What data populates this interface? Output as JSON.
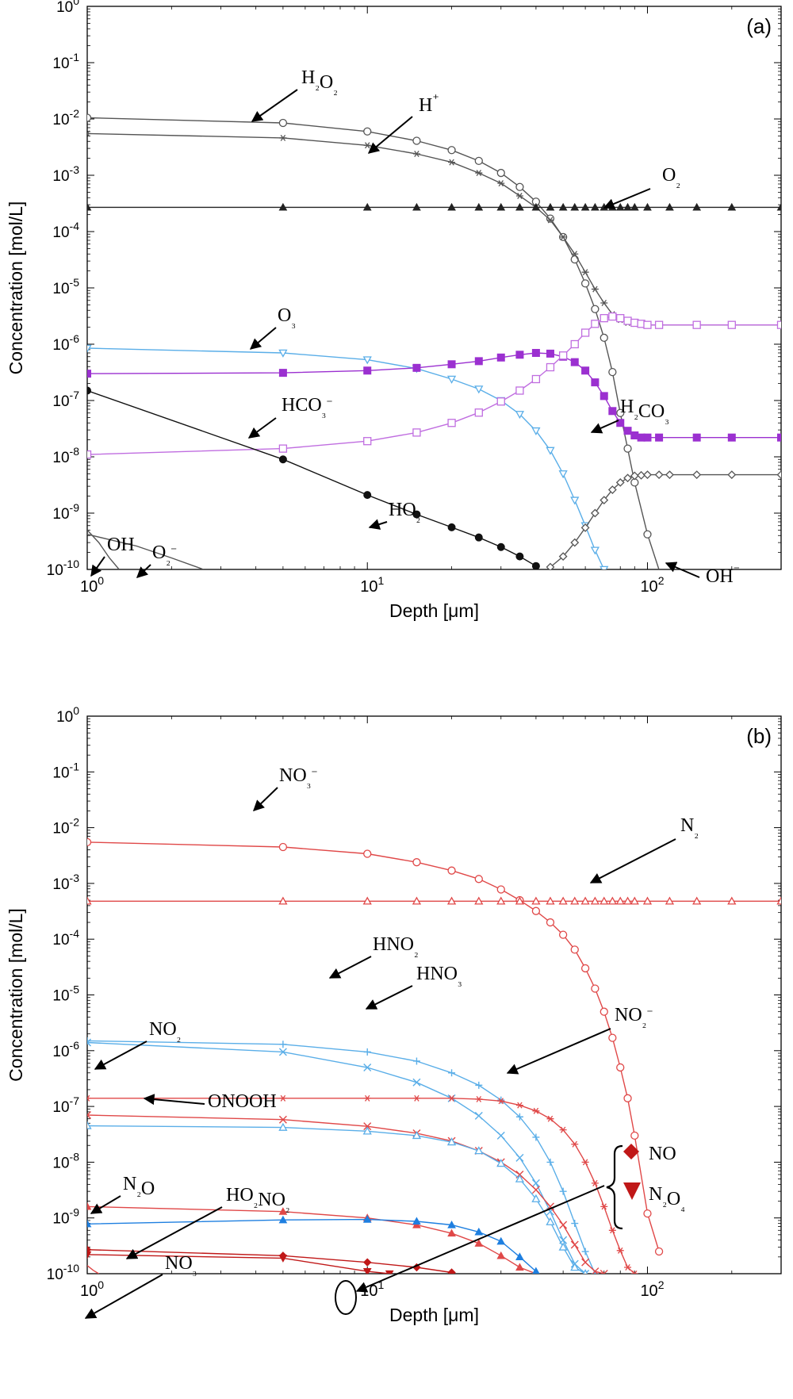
{
  "chart_data": [
    {
      "type": "line",
      "panel_label": "(a)",
      "xlabel": "Depth [μm]",
      "ylabel": "Concentration [mol/L]",
      "x_scale": "log",
      "y_scale": "log",
      "xlim": [
        1,
        300
      ],
      "ylim": [
        1e-10,
        1
      ],
      "x_tick_labels": [
        "10^0",
        "10^1",
        "10^2"
      ],
      "y_tick_labels": [
        "10^0",
        "10^-1",
        "10^-2",
        "10^-3",
        "10^-4",
        "10^-5",
        "10^-6",
        "10^-7",
        "10^-8",
        "10^-9",
        "10^-10"
      ],
      "grid": false,
      "series": [
        {
          "name": "H₂O₂",
          "color": "#555555",
          "marker": "circle-open",
          "x": [
            1,
            5,
            10,
            15,
            20,
            25,
            30,
            35,
            40,
            45,
            50,
            55,
            60,
            65,
            70,
            75,
            80,
            85,
            90,
            100,
            115
          ],
          "y": [
            0.0105,
            0.0085,
            0.006,
            0.0041,
            0.0028,
            0.0018,
            0.0011,
            0.00062,
            0.00034,
            0.00017,
            8e-05,
            3.2e-05,
            1.2e-05,
            4.2e-06,
            1.3e-06,
            3.2e-07,
            6e-08,
            1.4e-08,
            3.5e-09,
            4.2e-10,
            5e-11
          ]
        },
        {
          "name": "H⁺",
          "color": "#555555",
          "marker": "asterisk",
          "x": [
            1,
            5,
            10,
            15,
            20,
            25,
            30,
            35,
            40,
            45,
            50,
            55,
            60,
            65,
            70,
            75,
            80,
            85,
            90,
            95,
            100,
            110,
            150,
            200,
            300
          ],
          "y": [
            0.0055,
            0.0046,
            0.0034,
            0.0024,
            0.0017,
            0.0011,
            0.00072,
            0.00043,
            0.00027,
            0.00016,
            8e-05,
            4e-05,
            1.9e-05,
            9.5e-06,
            5.4e-06,
            3.4e-06,
            2.7e-06,
            2.4e-06,
            2.3e-06,
            2.2e-06,
            2.2e-06,
            2.2e-06,
            2.2e-06,
            2.2e-06,
            2.2e-06
          ]
        },
        {
          "name": "O₂",
          "color": "#222222",
          "marker": "triangle-filled",
          "x": [
            1,
            5,
            10,
            15,
            20,
            25,
            30,
            35,
            40,
            45,
            50,
            55,
            60,
            65,
            70,
            75,
            80,
            85,
            90,
            100,
            120,
            150,
            200,
            300
          ],
          "y": [
            0.00027,
            0.00027,
            0.00027,
            0.00027,
            0.00027,
            0.00027,
            0.00027,
            0.00027,
            0.00027,
            0.00027,
            0.00027,
            0.00027,
            0.00027,
            0.00027,
            0.00027,
            0.00027,
            0.00027,
            0.00027,
            0.00027,
            0.00027,
            0.00027,
            0.00027,
            0.00027,
            0.00027
          ]
        },
        {
          "name": "O₃",
          "color": "#5aaee8",
          "marker": "triangle-down-open",
          "x": [
            1,
            5,
            10,
            15,
            20,
            25,
            30,
            35,
            40,
            45,
            50,
            55,
            60,
            65,
            70
          ],
          "y": [
            8.5e-07,
            7e-07,
            5.3e-07,
            3.7e-07,
            2.4e-07,
            1.6e-07,
            1e-07,
            5.7e-08,
            2.9e-08,
            1.3e-08,
            5e-09,
            1.7e-09,
            6e-10,
            2.2e-10,
            1e-10
          ]
        },
        {
          "name": "H₂CO₃",
          "color": "#9b30d0",
          "marker": "square-filled",
          "x": [
            1,
            5,
            10,
            15,
            20,
            25,
            30,
            35,
            40,
            45,
            50,
            55,
            60,
            65,
            70,
            75,
            80,
            85,
            90,
            95,
            100,
            110,
            150,
            200,
            300
          ],
          "y": [
            3e-07,
            3.1e-07,
            3.4e-07,
            3.8e-07,
            4.4e-07,
            5e-07,
            5.8e-07,
            6.5e-07,
            7e-07,
            6.8e-07,
            6e-07,
            4.8e-07,
            3.4e-07,
            2.1e-07,
            1.2e-07,
            6.5e-08,
            4e-08,
            2.9e-08,
            2.4e-08,
            2.2e-08,
            2.2e-08,
            2.2e-08,
            2.2e-08,
            2.2e-08,
            2.2e-08
          ]
        },
        {
          "name": "HCO₃⁻",
          "color": "#c06ee0",
          "marker": "square-open",
          "x": [
            1,
            5,
            10,
            15,
            20,
            25,
            30,
            35,
            40,
            45,
            50,
            55,
            60,
            65,
            70,
            75,
            80,
            85,
            90,
            95,
            100,
            110,
            150,
            200,
            300
          ],
          "y": [
            1.1e-08,
            1.4e-08,
            1.9e-08,
            2.7e-08,
            4e-08,
            6.1e-08,
            9.6e-08,
            1.5e-07,
            2.4e-07,
            3.9e-07,
            6.3e-07,
            1e-06,
            1.6e-06,
            2.3e-06,
            2.9e-06,
            3.1e-06,
            2.9e-06,
            2.6e-06,
            2.4e-06,
            2.3e-06,
            2.2e-06,
            2.2e-06,
            2.2e-06,
            2.2e-06,
            2.2e-06
          ]
        },
        {
          "name": "HO₂",
          "color": "#111111",
          "marker": "circle-filled",
          "x": [
            1,
            5,
            10,
            15,
            20,
            25,
            30,
            35,
            40
          ],
          "y": [
            1.5e-07,
            9e-09,
            2.1e-09,
            9.5e-10,
            5.6e-10,
            3.7e-10,
            2.5e-10,
            1.7e-10,
            1.15e-10
          ]
        },
        {
          "name": "OH⁻",
          "color": "#555555",
          "marker": "diamond-open",
          "x": [
            45,
            50,
            55,
            60,
            65,
            70,
            75,
            80,
            85,
            90,
            95,
            100,
            110,
            120,
            150,
            200,
            300
          ],
          "y": [
            1.1e-10,
            1.7e-10,
            3e-10,
            5.5e-10,
            1e-09,
            1.7e-09,
            2.6e-09,
            3.5e-09,
            4.2e-09,
            4.6e-09,
            4.7e-09,
            4.8e-09,
            4.8e-09,
            4.8e-09,
            4.8e-09,
            4.8e-09,
            4.8e-09
          ]
        },
        {
          "name": "OH",
          "color": "#555555",
          "marker": "none",
          "x": [
            1,
            1.1,
            1.2,
            1.3
          ],
          "y": [
            5e-10,
            3e-10,
            1.6e-10,
            1e-10
          ]
        },
        {
          "name": "O₂⁻",
          "color": "#555555",
          "marker": "none",
          "x": [
            1,
            1.5,
            2,
            2.6
          ],
          "y": [
            4.2e-10,
            2.6e-10,
            1.6e-10,
            1e-10
          ]
        }
      ],
      "annotations": [
        "H₂O₂",
        "H⁺",
        "O₂",
        "O₃",
        "HCO₃⁻",
        "H₂CO₃",
        "HO₂",
        "OH",
        "O₂⁻",
        "OH⁻"
      ]
    },
    {
      "type": "line",
      "panel_label": "(b)",
      "xlabel": "Depth [μm]",
      "ylabel": "Concentration [mol/L]",
      "x_scale": "log",
      "y_scale": "log",
      "xlim": [
        1,
        300
      ],
      "ylim": [
        1e-10,
        1
      ],
      "x_tick_labels": [
        "10^0",
        "10^1",
        "10^2"
      ],
      "y_tick_labels": [
        "10^0",
        "10^-1",
        "10^-2",
        "10^-3",
        "10^-4",
        "10^-5",
        "10^-6",
        "10^-7",
        "10^-8",
        "10^-9",
        "10^-10"
      ],
      "grid": false,
      "series": [
        {
          "name": "NO₃⁻",
          "color": "#e04848",
          "marker": "circle-open",
          "x": [
            1,
            5,
            10,
            15,
            20,
            25,
            30,
            35,
            40,
            45,
            50,
            55,
            60,
            65,
            70,
            75,
            80,
            85,
            90,
            100,
            110
          ],
          "y": [
            0.0055,
            0.0045,
            0.0034,
            0.0024,
            0.0017,
            0.0012,
            0.00078,
            0.0005,
            0.00032,
            0.0002,
            0.00012,
            6.5e-05,
            3e-05,
            1.3e-05,
            5e-06,
            1.7e-06,
            5e-07,
            1.4e-07,
            3e-08,
            1.2e-09,
            2.5e-10
          ]
        },
        {
          "name": "N₂",
          "color": "#e04848",
          "marker": "triangle-open",
          "x": [
            1,
            5,
            10,
            15,
            20,
            25,
            30,
            35,
            40,
            45,
            50,
            55,
            60,
            65,
            70,
            75,
            80,
            85,
            90,
            100,
            120,
            150,
            200,
            300
          ],
          "y": [
            0.00048,
            0.00048,
            0.00048,
            0.00048,
            0.00048,
            0.00048,
            0.00048,
            0.00048,
            0.00048,
            0.00048,
            0.00048,
            0.00048,
            0.00048,
            0.00048,
            0.00048,
            0.00048,
            0.00048,
            0.00048,
            0.00048,
            0.00048,
            0.00048,
            0.00048,
            0.00048,
            0.00048
          ]
        },
        {
          "name": "HNO₂",
          "color": "#5aaee8",
          "marker": "plus",
          "x": [
            1,
            5,
            10,
            15,
            20,
            25,
            30,
            35,
            40,
            45,
            50,
            55,
            60,
            65
          ],
          "y": [
            1.5e-06,
            1.3e-06,
            9.5e-07,
            6.5e-07,
            4e-07,
            2.4e-07,
            1.3e-07,
            6.5e-08,
            2.8e-08,
            1e-08,
            3e-09,
            8e-10,
            2.5e-10,
            1e-10
          ]
        },
        {
          "name": "HNO₃",
          "color": "#5aaee8",
          "marker": "x",
          "x": [
            1,
            5,
            10,
            15,
            20,
            25,
            30,
            35,
            40,
            45,
            50,
            55,
            60
          ],
          "y": [
            1.4e-06,
            9.5e-07,
            5e-07,
            2.7e-07,
            1.4e-07,
            6.8e-08,
            3e-08,
            1.2e-08,
            4.2e-09,
            1.3e-09,
            4e-10,
            1.5e-10,
            1e-10
          ]
        },
        {
          "name": "NO₂⁻",
          "color": "#e04848",
          "marker": "asterisk",
          "x": [
            1,
            5,
            10,
            15,
            20,
            25,
            30,
            35,
            40,
            45,
            50,
            55,
            60,
            65,
            70,
            75,
            80,
            85,
            90
          ],
          "y": [
            1.4e-07,
            1.4e-07,
            1.4e-07,
            1.4e-07,
            1.4e-07,
            1.35e-07,
            1.25e-07,
            1.05e-07,
            8.3e-08,
            6e-08,
            3.8e-08,
            2.1e-08,
            1e-08,
            4.2e-09,
            1.6e-09,
            6e-10,
            2.6e-10,
            1.3e-10,
            1e-10
          ]
        },
        {
          "name": "NO₂",
          "color": "#e04848",
          "marker": "x",
          "x": [
            1,
            5,
            10,
            15,
            20,
            25,
            30,
            35,
            40,
            45,
            50,
            55,
            60,
            65,
            70
          ],
          "y": [
            7e-08,
            5.8e-08,
            4.4e-08,
            3.3e-08,
            2.4e-08,
            1.6e-08,
            1e-08,
            6e-09,
            3.2e-09,
            1.6e-09,
            7.5e-10,
            3.3e-10,
            1.6e-10,
            1.1e-10,
            1e-10
          ]
        },
        {
          "name": "ONOOH",
          "color": "#5aaee8",
          "marker": "triangle-open",
          "x": [
            1,
            5,
            10,
            15,
            20,
            25,
            30,
            35,
            40,
            45,
            50,
            55,
            60
          ],
          "y": [
            4.5e-08,
            4.2e-08,
            3.6e-08,
            3e-08,
            2.3e-08,
            1.6e-08,
            9.5e-09,
            5e-09,
            2.2e-09,
            8.5e-10,
            3e-10,
            1.3e-10,
            1e-10
          ]
        },
        {
          "name": "N₂O",
          "color": "#e04848",
          "marker": "triangle-filled",
          "x": [
            1,
            5,
            10,
            15,
            20,
            25,
            30,
            35,
            40
          ],
          "y": [
            1.6e-09,
            1.3e-09,
            1e-09,
            7.5e-10,
            5.3e-10,
            3.5e-10,
            2.1e-10,
            1.3e-10,
            1e-10
          ]
        },
        {
          "name": "HO₂NO₂",
          "color": "#1e7fe0",
          "marker": "triangle-filled",
          "x": [
            1,
            5,
            10,
            15,
            20,
            25,
            30,
            35,
            40
          ],
          "y": [
            7.8e-10,
            9.2e-10,
            9.4e-10,
            8.7e-10,
            7.5e-10,
            5.6e-10,
            3.8e-10,
            2e-10,
            1.1e-10
          ]
        },
        {
          "name": "NO₃",
          "color": "#e04848",
          "marker": "none",
          "x": [
            1,
            1.05,
            1.1
          ],
          "y": [
            1.4e-10,
            1.15e-10,
            1e-10
          ]
        },
        {
          "name": "NO",
          "color": "#c01818",
          "marker": "diamond-filled",
          "x": [
            1,
            5,
            10,
            15,
            20
          ],
          "y": [
            2.7e-10,
            2.1e-10,
            1.6e-10,
            1.3e-10,
            1.05e-10
          ]
        },
        {
          "name": "N₂O₄",
          "color": "#c01818",
          "marker": "triangle-down-filled",
          "x": [
            1,
            5,
            10,
            12
          ],
          "y": [
            2.2e-10,
            1.9e-10,
            1.1e-10,
            1e-10
          ]
        }
      ],
      "annotations": [
        "NO₃⁻",
        "N₂",
        "HNO₂",
        "HNO₃",
        "NO₂",
        "ONOOH",
        "NO₂⁻",
        "N₂O",
        "HO₂NO₂",
        "NO₃",
        "NO",
        "N₂O₄"
      ]
    }
  ]
}
